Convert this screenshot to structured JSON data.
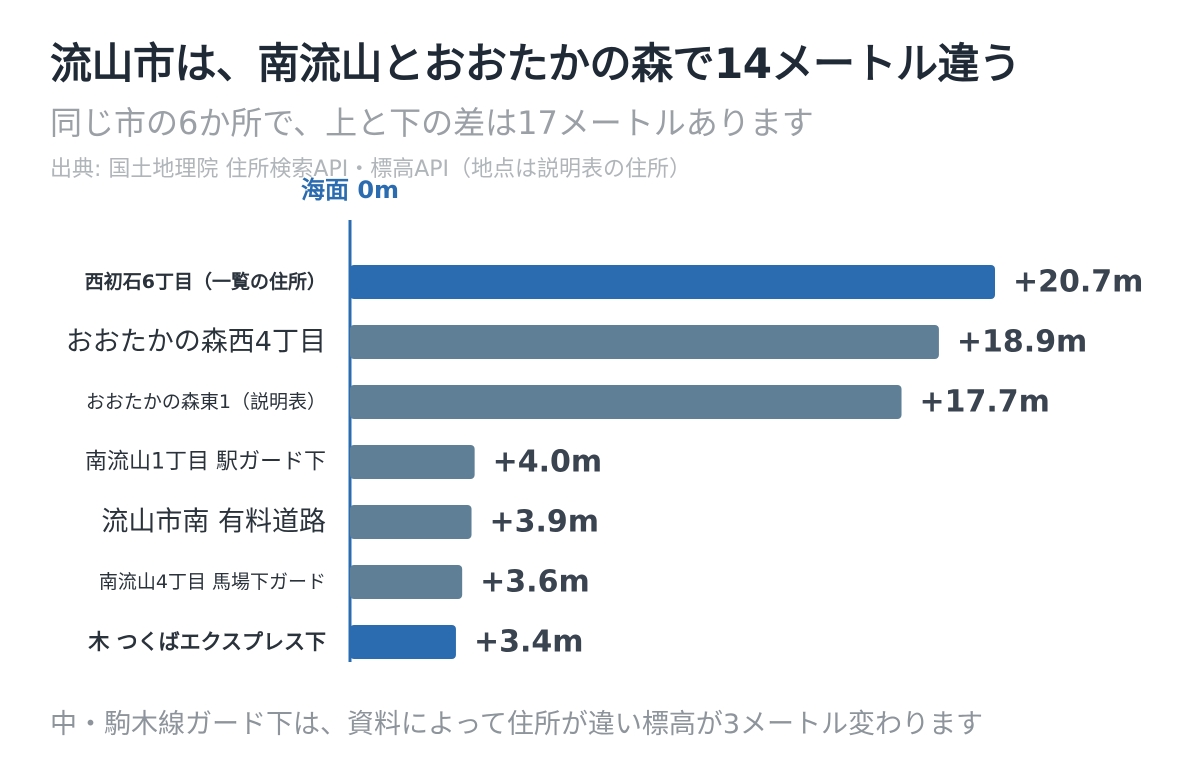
{
  "title": "流山市は、南流山とおおたかの森で14メートル違う",
  "subtitle": "同じ市の6か所で、上と下の差は17メートルあります",
  "source": "出典: 国土地理院 住所検索API・標高API（地点は説明表の住所）",
  "footnote": "中・駒木線ガード下は、資料によって住所が違い標高が3メートル変わります",
  "colors": {
    "highlight": "#2b6cb0",
    "normal": "#5e7f96",
    "axis": "#2b6cb0",
    "label": "#2a323b",
    "value": "#3a4350"
  },
  "chart_data": {
    "type": "bar",
    "orientation": "horizontal",
    "axis_label": "海面 0m",
    "unit": "m",
    "categories": [
      "西初石6丁目（一覧の住所）",
      "おおたかの森西4丁目",
      "おおたかの森東1（説明表）",
      "南流山1丁目 駅ガード下",
      "流山市南 有料道路",
      "南流山4丁目 馬場下ガード",
      "木 つくばエクスプレス下"
    ],
    "values": [
      20.7,
      18.9,
      17.7,
      4.0,
      3.9,
      3.6,
      3.4
    ],
    "value_labels": [
      "+20.7m",
      "+18.9m",
      "+17.7m",
      "+4.0m",
      "+3.9m",
      "+3.6m",
      "+3.4m"
    ],
    "highlighted": [
      true,
      false,
      false,
      false,
      false,
      false,
      true
    ],
    "xlim": [
      0,
      20.7
    ]
  }
}
